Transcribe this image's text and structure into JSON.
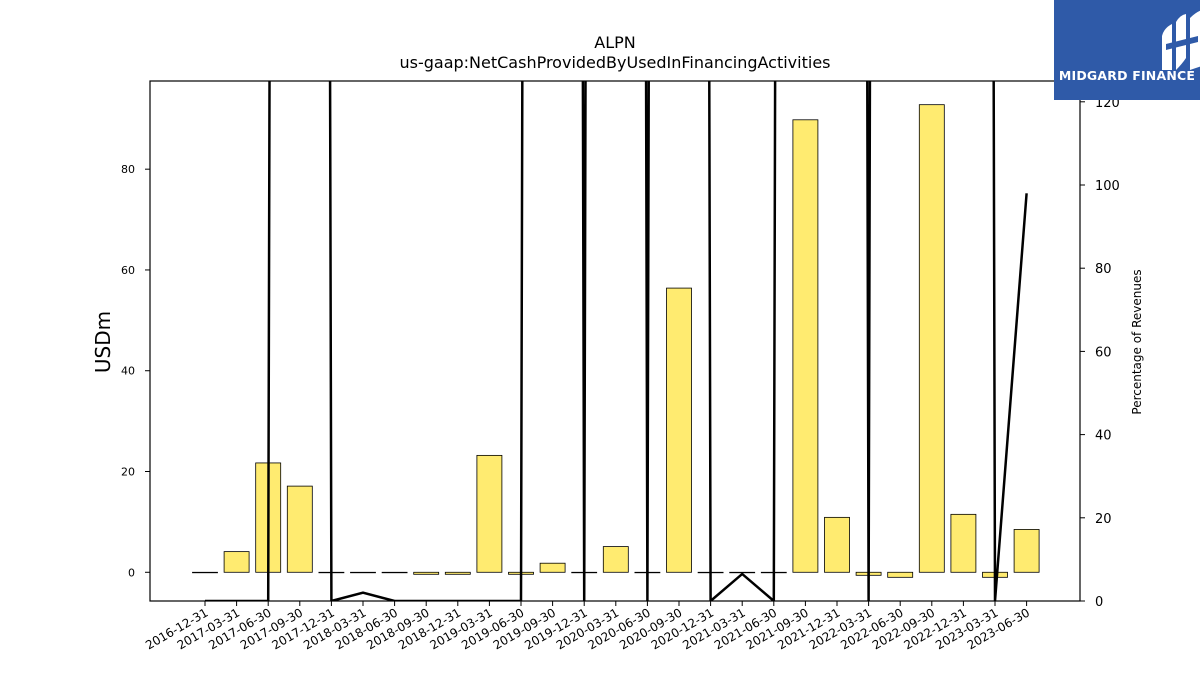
{
  "chart_data": {
    "type": "bar",
    "title": "ALPN",
    "subtitle": "us-gaap:NetCashProvidedByUsedInFinancingActivities",
    "ylabel": "USDm",
    "y2label": "Percentage of Revenues",
    "categories": [
      "2016-12-31",
      "2017-03-31",
      "2017-06-30",
      "2017-09-30",
      "2017-12-31",
      "2018-03-31",
      "2018-06-30",
      "2018-09-30",
      "2018-12-31",
      "2019-03-31",
      "2019-06-30",
      "2019-09-30",
      "2019-12-31",
      "2020-03-31",
      "2020-06-30",
      "2020-09-30",
      "2020-12-31",
      "2021-03-31",
      "2021-06-30",
      "2021-09-30",
      "2021-12-31",
      "2022-03-31",
      "2022-06-30",
      "2022-09-30",
      "2022-12-31",
      "2023-03-31",
      "2023-06-30"
    ],
    "values": [
      0,
      4.1,
      21.7,
      17.1,
      0,
      0,
      0,
      -0.4,
      -0.4,
      23.2,
      -0.4,
      1.8,
      0,
      5.1,
      0,
      56.4,
      0,
      0,
      0,
      89.8,
      10.9,
      -0.6,
      -1.0,
      92.8,
      11.5,
      -1.0,
      8.5
    ],
    "pct_revenues": [
      0,
      0,
      0,
      3000,
      0,
      2,
      0,
      0,
      0,
      0,
      0,
      3000,
      0,
      3000,
      0,
      3000,
      0,
      6.5,
      0,
      3000,
      3000,
      0,
      3000,
      3000,
      3000,
      0,
      98
    ],
    "ylim": [
      -5.7,
      97.5
    ],
    "y2lim": [
      0,
      125
    ],
    "yticks": [
      0,
      20,
      40,
      60,
      80
    ],
    "y2ticks": [
      0,
      20,
      40,
      60,
      80,
      100,
      120
    ],
    "bar_color": "#ffeb70",
    "line_color": "#000000",
    "grid": false
  },
  "logo": {
    "name": "MIDGARD FINANCE",
    "background": "#2f5aa8"
  }
}
